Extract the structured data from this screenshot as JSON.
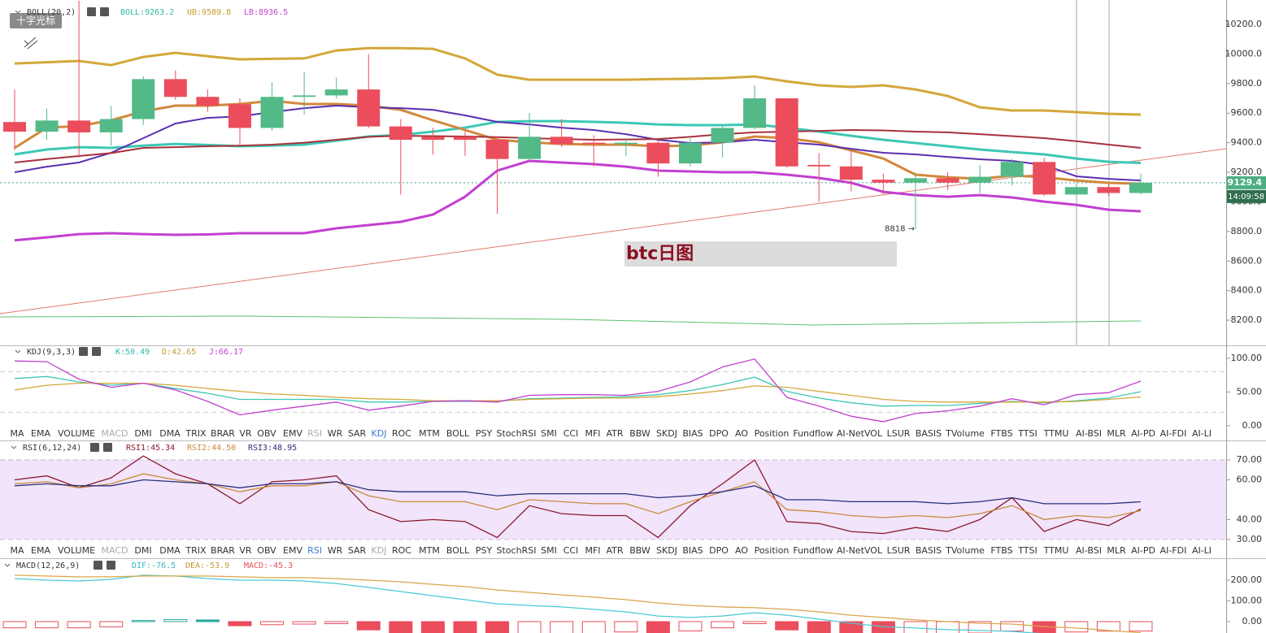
{
  "ui": {
    "badge": "十字光标",
    "title_box": "btc日图",
    "indicator_tabs": [
      "MA",
      "EMA",
      "VOLUME",
      "MACD",
      "DMI",
      "DMA",
      "TRIX",
      "BRAR",
      "VR",
      "OBV",
      "EMV",
      "RSI",
      "WR",
      "SAR",
      "KDJ",
      "ROC",
      "MTM",
      "BOLL",
      "PSY",
      "StochRSI",
      "SMI",
      "CCI",
      "MFI",
      "ATR",
      "BBW",
      "SKDJ",
      "BIAS",
      "DPO",
      "AO",
      "Position",
      "Fundflow",
      "AI-NetVOL",
      "LSUR",
      "BASIS",
      "TVolume",
      "FTBS",
      "TTSI",
      "TTMU",
      "AI-BSI",
      "MLR",
      "AI-PD",
      "AI-FDI",
      "AI-LI"
    ],
    "tab_bars": [
      {
        "selected": 14,
        "dimmed": [
          3,
          11
        ]
      },
      {
        "selected": 11,
        "dimmed": [
          3,
          14
        ]
      }
    ]
  },
  "chart_data": [
    {
      "type": "candlestick",
      "header": [
        {
          "text": "BOLL(20,2)",
          "color": "#333333"
        },
        {
          "text": "BOLL:9263.2",
          "color": "#2fb8a6"
        },
        {
          "text": "UB:9589.8",
          "color": "#c99a2e"
        },
        {
          "text": "LB:8936.5",
          "color": "#c23fd0"
        }
      ],
      "up_color": "#53b987",
      "down_color": "#eb4d5c",
      "open": [
        9540,
        9475,
        9550,
        9470,
        9560,
        9830,
        9710,
        9660,
        9500,
        9710,
        9720,
        9760,
        9510,
        9440,
        9440,
        9420,
        9290,
        9440,
        9400,
        9390,
        9400,
        9260,
        9400,
        9500,
        9700,
        9250,
        9240,
        9150,
        9130,
        9160,
        9130,
        9170,
        9270,
        9050,
        9100,
        9060
      ],
      "high": [
        9760,
        9630,
        10360,
        9650,
        9850,
        9890,
        9760,
        9700,
        9810,
        9880,
        9840,
        10000,
        9560,
        9500,
        9480,
        9440,
        9600,
        9560,
        9450,
        9430,
        9420,
        9430,
        9520,
        9790,
        9700,
        9330,
        9350,
        9190,
        9200,
        9200,
        9250,
        9290,
        9300,
        9120,
        9120,
        9190
      ],
      "low": [
        9350,
        9420,
        9300,
        9380,
        9520,
        9690,
        9610,
        9380,
        9480,
        9590,
        9700,
        9500,
        9050,
        9320,
        9310,
        8920,
        9280,
        9370,
        9240,
        9310,
        9170,
        9240,
        9300,
        9490,
        9230,
        9000,
        9070,
        9050,
        8818,
        9080,
        9060,
        9110,
        9040,
        9040,
        9040,
        9050
      ],
      "close": [
        9475,
        9550,
        9470,
        9560,
        9830,
        9710,
        9650,
        9500,
        9710,
        9720,
        9760,
        9510,
        9420,
        9420,
        9420,
        9290,
        9440,
        9390,
        9390,
        9400,
        9260,
        9400,
        9500,
        9700,
        9240,
        9240,
        9150,
        9130,
        9160,
        9130,
        9170,
        9270,
        9050,
        9100,
        9060,
        9129.4
      ],
      "overlays": [
        {
          "color": "#d4a73a",
          "width": 3,
          "values": [
            9936,
            9944,
            9953,
            9925,
            9980,
            10008,
            9985,
            9964,
            9967,
            9970,
            10024,
            10040,
            10040,
            10035,
            9970,
            9860,
            9826,
            9826,
            9826,
            9826,
            9830,
            9832,
            9837,
            9848,
            9815,
            9788,
            9777,
            9788,
            9760,
            9716,
            9640,
            9618,
            9618,
            9607,
            9596,
            9589.8
          ]
        },
        {
          "color": "#c23fd0",
          "width": 3,
          "values": [
            8740,
            8760,
            8782,
            8788,
            8782,
            8777,
            8780,
            8788,
            8788,
            8788,
            8821,
            8843,
            8865,
            8914,
            9035,
            9211,
            9277,
            9266,
            9255,
            9238,
            9211,
            9206,
            9200,
            9200,
            9184,
            9162,
            9129,
            9068,
            9046,
            9035,
            9046,
            9030,
            9002,
            8980,
            8947,
            8936.5
          ]
        },
        {
          "color": "#3cc8b4",
          "width": 3,
          "values": [
            9321,
            9354,
            9370,
            9365,
            9380,
            9392,
            9385,
            9376,
            9380,
            9387,
            9414,
            9442,
            9453,
            9475,
            9502,
            9541,
            9546,
            9546,
            9541,
            9535,
            9524,
            9519,
            9519,
            9524,
            9502,
            9475,
            9447,
            9420,
            9398,
            9376,
            9354,
            9337,
            9321,
            9293,
            9271,
            9263.2
          ]
        },
        {
          "color": "#d2883a",
          "width": 3,
          "values": [
            9365,
            9502,
            9513,
            9552,
            9612,
            9651,
            9651,
            9662,
            9684,
            9662,
            9662,
            9651,
            9623,
            9552,
            9486,
            9420,
            9403,
            9392,
            9387,
            9387,
            9376,
            9381,
            9403,
            9442,
            9431,
            9403,
            9348,
            9293,
            9184,
            9167,
            9156,
            9178,
            9167,
            9145,
            9129,
            9123
          ]
        },
        {
          "color": "#5b2fb0",
          "width": 2,
          "values": [
            9200,
            9238,
            9266,
            9332,
            9431,
            9530,
            9568,
            9579,
            9607,
            9634,
            9651,
            9640,
            9634,
            9623,
            9585,
            9541,
            9524,
            9502,
            9486,
            9458,
            9420,
            9398,
            9403,
            9420,
            9403,
            9387,
            9359,
            9332,
            9321,
            9304,
            9288,
            9277,
            9249,
            9173,
            9156,
            9145
          ]
        },
        {
          "color": "#a8323c",
          "width": 2,
          "values": [
            9266,
            9290,
            9310,
            9330,
            9365,
            9370,
            9376,
            9380,
            9387,
            9400,
            9420,
            9440,
            9447,
            9445,
            9442,
            9438,
            9431,
            9425,
            9420,
            9422,
            9425,
            9440,
            9458,
            9470,
            9475,
            9480,
            9486,
            9483,
            9475,
            9470,
            9458,
            9445,
            9431,
            9410,
            9387,
            9365
          ]
        }
      ],
      "ylim": [
        8030,
        10365
      ],
      "yticks": [
        {
          "value": 8200,
          "label": "8200.0"
        },
        {
          "value": 8400,
          "label": "8400.0"
        },
        {
          "value": 8600,
          "label": "8600.0"
        },
        {
          "value": 8800,
          "label": "8800.0"
        },
        {
          "value": 9000,
          "label": "9000.0"
        },
        {
          "value": 9200,
          "label": "9200.0"
        },
        {
          "value": 9400,
          "label": "9400.0"
        },
        {
          "value": 9600,
          "label": "9600.0"
        },
        {
          "value": 9800,
          "label": "9800.0"
        },
        {
          "value": 10000,
          "label": "10000.0"
        },
        {
          "value": 10200,
          "label": "10200.0"
        }
      ],
      "current_price": 9129.4,
      "time_label": "14:09:58",
      "low_annotation": {
        "value": 8818,
        "label": "8818 →"
      }
    },
    {
      "type": "line",
      "header": [
        {
          "text": "KDJ(9,3,3)",
          "color": "#333333"
        },
        {
          "text": "K:50.49",
          "color": "#2fb8a6"
        },
        {
          "text": "D:42.65",
          "color": "#c99a2e"
        },
        {
          "text": "J:66.17",
          "color": "#c23fd0"
        }
      ],
      "series": [
        {
          "color": "#3cc8b4",
          "values": [
            70,
            73,
            65,
            60,
            63,
            55,
            48,
            39,
            39,
            39,
            39,
            35,
            35,
            36,
            36,
            36,
            40,
            41,
            42,
            43,
            46,
            52,
            61,
            72,
            51,
            41,
            34,
            29,
            30,
            30,
            33,
            36,
            34,
            37,
            41,
            50.49
          ]
        },
        {
          "color": "#d4a73a",
          "values": [
            53,
            60,
            63,
            63,
            63,
            60,
            55,
            51,
            47,
            45,
            42,
            40,
            39,
            37,
            37,
            37,
            39,
            40,
            41,
            41,
            43,
            47,
            52,
            59,
            57,
            51,
            45,
            39,
            36,
            35,
            35,
            35,
            35,
            36,
            39,
            42.65
          ]
        },
        {
          "color": "#c23fd0",
          "values": [
            96,
            95,
            69,
            57,
            63,
            53,
            36,
            16,
            23,
            29,
            35,
            23,
            29,
            36,
            37,
            35,
            45,
            46,
            46,
            45,
            51,
            65,
            87,
            99,
            42,
            29,
            14,
            6,
            18,
            22,
            29,
            40,
            31,
            46,
            49,
            66.17
          ]
        }
      ],
      "levels": [
        20,
        80
      ],
      "ylim": [
        -5,
        118
      ],
      "yticks": [
        {
          "value": 0,
          "label": "0.00"
        },
        {
          "value": 50,
          "label": "50.00"
        },
        {
          "value": 100,
          "label": "100.00"
        }
      ]
    },
    {
      "type": "line",
      "header": [
        {
          "text": "RSI(6,12,24)",
          "color": "#333333"
        },
        {
          "text": "RSI1:45.34",
          "color": "#8b1a2b"
        },
        {
          "text": "RSI2:44.50",
          "color": "#c9893a"
        },
        {
          "text": "RSI3:48.95",
          "color": "#2a2f7a"
        }
      ],
      "series": [
        {
          "color": "#8b1a2b",
          "values": [
            60,
            62,
            56,
            61,
            72,
            63,
            58,
            48,
            59,
            60,
            62,
            45,
            39,
            40,
            39,
            31,
            47,
            43,
            42,
            42,
            31,
            47,
            58,
            70,
            39,
            38,
            34,
            33,
            36,
            34,
            40,
            51,
            34,
            40,
            37,
            45.34
          ]
        },
        {
          "color": "#c9893a",
          "values": [
            58,
            59,
            56,
            58,
            63,
            60,
            58,
            54,
            57,
            57,
            59,
            52,
            49,
            49,
            49,
            45,
            50,
            49,
            48,
            48,
            43,
            49,
            54,
            59,
            45,
            44,
            42,
            41,
            42,
            41,
            43,
            47,
            40,
            42,
            41,
            44.5
          ]
        },
        {
          "color": "#2a2f7a",
          "values": [
            57,
            58,
            57,
            57,
            60,
            59,
            58,
            56,
            58,
            58,
            59,
            55,
            54,
            54,
            54,
            52,
            53,
            53,
            53,
            53,
            51,
            52,
            54,
            57,
            50,
            50,
            49,
            49,
            49,
            48,
            49,
            51,
            48,
            48,
            48,
            48.95
          ]
        }
      ],
      "band": [
        30,
        70
      ],
      "band_color": "#f1e4fb",
      "ylim": [
        26.7,
        79.4
      ],
      "yticks": [
        {
          "value": 30,
          "label": "30.00"
        },
        {
          "value": 40,
          "label": "40.00"
        },
        {
          "value": 60,
          "label": "60.00"
        },
        {
          "value": 70,
          "label": "70.00"
        }
      ]
    },
    {
      "type": "macd",
      "header": [
        {
          "text": "MACD(12,26,9)",
          "color": "#333333"
        },
        {
          "text": "DIF:-76.5",
          "color": "#2fb8c6"
        },
        {
          "text": "DEA:-53.9",
          "color": "#c99a2e"
        },
        {
          "text": "MACD:-45.3",
          "color": "#eb4d5c"
        }
      ],
      "histogram": [
        -30,
        -30,
        -30,
        -25,
        5,
        10,
        8,
        -20,
        -15,
        -12,
        -10,
        -40,
        -60,
        -70,
        -80,
        -90,
        -80,
        -70,
        -60,
        -50,
        -60,
        -45,
        -30,
        -10,
        -40,
        -60,
        -70,
        -80,
        -70,
        -65,
        -55,
        -45,
        -60,
        -50,
        -46,
        -45.3
      ],
      "up_color": "#26a69a",
      "down_color": "#eb4d5c",
      "series": [
        {
          "color": "#4cc9d6",
          "values": [
            208,
            200,
            196,
            204,
            224,
            220,
            208,
            200,
            200,
            196,
            184,
            165,
            145,
            125,
            106,
            86,
            78,
            71,
            59,
            47,
            27,
            20,
            27,
            43,
            31,
            12,
            -8,
            -24,
            -31,
            -39,
            -43,
            -47,
            -59,
            -70,
            -75,
            -76.5
          ]
        },
        {
          "color": "#d9a64a",
          "values": [
            224,
            220,
            216,
            216,
            220,
            220,
            220,
            216,
            212,
            212,
            208,
            200,
            192,
            180,
            169,
            153,
            141,
            129,
            118,
            106,
            90,
            78,
            71,
            67,
            59,
            47,
            31,
            20,
            8,
            0,
            -8,
            -12,
            -24,
            -31,
            -43,
            -53.9
          ]
        }
      ],
      "ylim": [
        -55,
        302
      ],
      "yticks": [
        {
          "value": 0,
          "label": "0.00"
        },
        {
          "value": 100,
          "label": "100.00"
        },
        {
          "value": 200,
          "label": "200.00"
        }
      ]
    }
  ]
}
